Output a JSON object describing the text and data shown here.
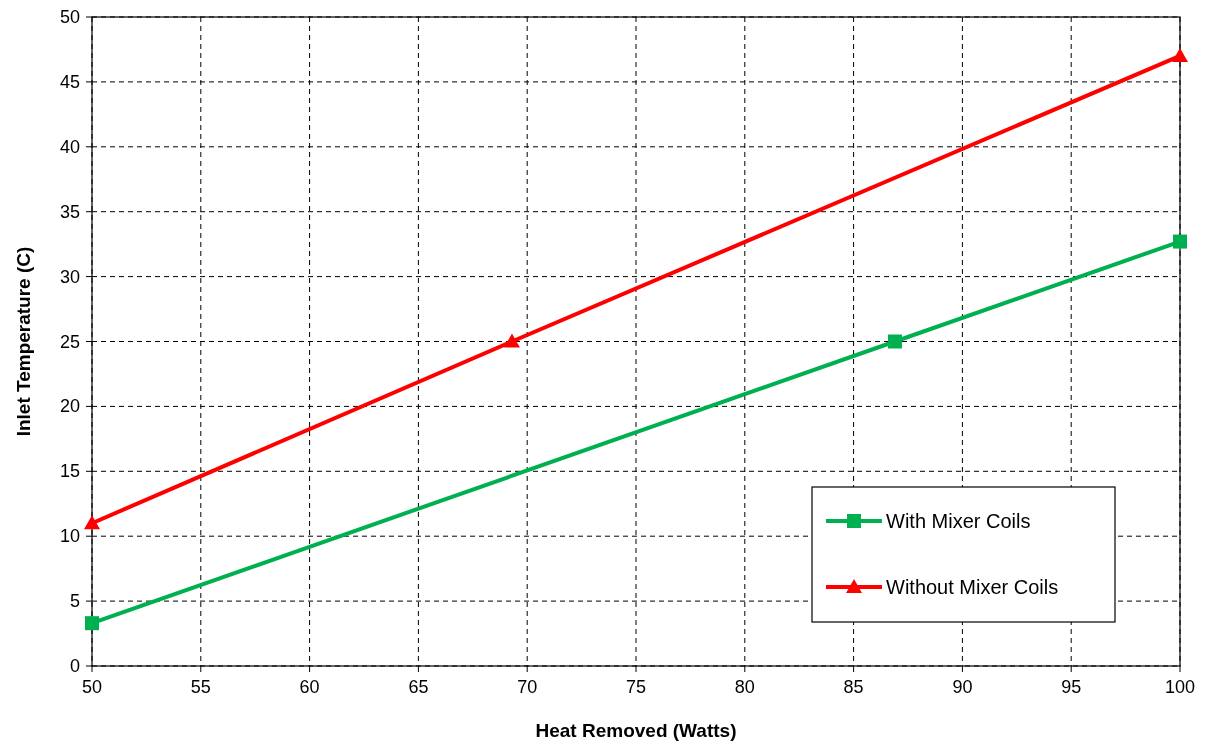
{
  "chart_data": {
    "type": "line",
    "xlabel": "Heat Removed (Watts)",
    "ylabel": "Inlet Temperature (C)",
    "xlim": [
      50,
      100
    ],
    "xticks": [
      50,
      55,
      60,
      65,
      70,
      75,
      80,
      85,
      90,
      95,
      100
    ],
    "ylim": [
      0,
      50
    ],
    "yticks": [
      0,
      5,
      10,
      15,
      20,
      25,
      30,
      35,
      40,
      45,
      50
    ],
    "grid": true,
    "legend": "bottom right",
    "line_style": "solid",
    "series": [
      {
        "name": "With Mixer Coils",
        "color": "#00b050",
        "marker": "square",
        "x": [
          50,
          86.9,
          100
        ],
        "values": [
          3.3,
          25,
          32.7
        ]
      },
      {
        "name": "Without Mixer Coils",
        "color": "#ff0000",
        "marker": "triangle",
        "x": [
          50,
          69.3,
          100
        ],
        "values": [
          11,
          25,
          47
        ]
      }
    ]
  }
}
